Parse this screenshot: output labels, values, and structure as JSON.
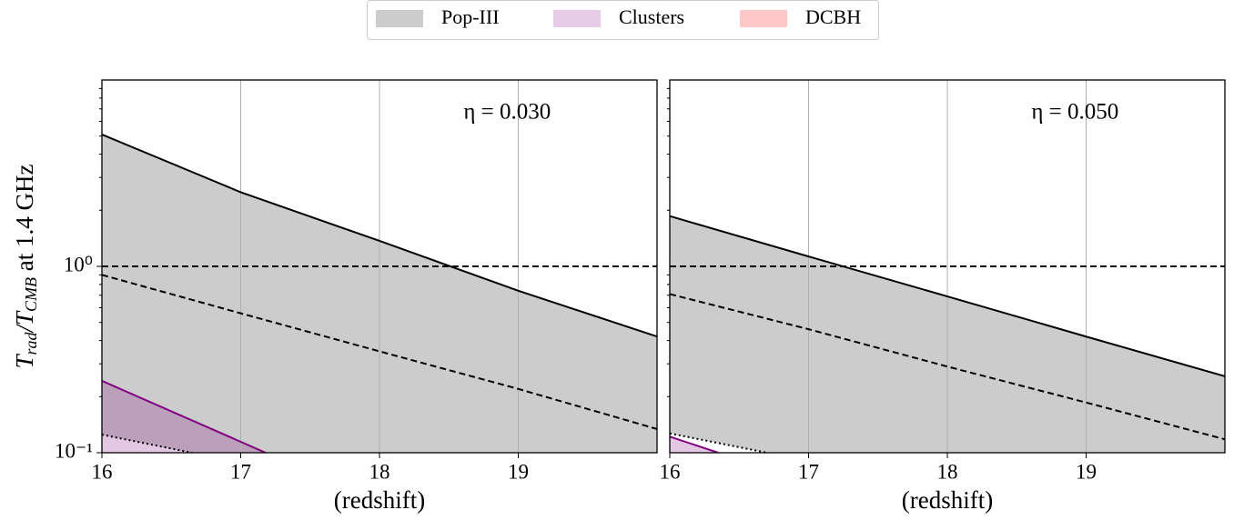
{
  "legend": [
    {
      "name": "Pop-III",
      "color": "#808080"
    },
    {
      "name": "Clusters",
      "color": "#800080"
    },
    {
      "name": "DCBH",
      "color": "#ff0000"
    }
  ],
  "ylabel": [
    "T",
    "rad",
    "/T",
    "CMB",
    " at 1.4 GHz"
  ],
  "chart_data": [
    {
      "type": "line",
      "annotation": "η = 0.030",
      "xlabel": "(redshift)",
      "xlim": [
        16,
        20
      ],
      "xticks": [
        16,
        17,
        18,
        19
      ],
      "ylim": [
        0.1,
        10
      ],
      "log_y": true,
      "yticks": [
        {
          "value": 0.1,
          "label": "10⁻¹"
        },
        {
          "value": 1,
          "label": "10⁰"
        }
      ],
      "grid": true,
      "reference_lines": [
        1
      ],
      "series": [
        {
          "color": "#000000",
          "style": "solid",
          "fill": "#808080",
          "fill_to": 2,
          "x": [
            16,
            17,
            18,
            19,
            20
          ],
          "values": [
            5.1,
            2.5,
            1.37,
            0.74,
            0.42
          ]
        },
        {
          "color": "#000000",
          "style": "dashed",
          "x": [
            16,
            17,
            18,
            19,
            20
          ],
          "values": [
            0.9,
            0.56,
            0.35,
            0.22,
            0.134
          ]
        },
        {
          "color": "#000000",
          "style": "dotted",
          "x": [
            16,
            16.65
          ],
          "values": [
            0.125,
            0.1
          ]
        },
        {
          "color": "#800080",
          "style": "solid",
          "fill": "#800080",
          "x": [
            16,
            17.18
          ],
          "values": [
            0.243,
            0.1
          ]
        }
      ]
    },
    {
      "type": "line",
      "annotation": "η = 0.050",
      "xlabel": "(redshift)",
      "xlim": [
        16,
        20
      ],
      "xticks": [
        16,
        17,
        18,
        19
      ],
      "ylim": [
        0.1,
        10
      ],
      "log_y": true,
      "grid": true,
      "reference_lines": [
        1
      ],
      "series": [
        {
          "color": "#000000",
          "style": "solid",
          "fill": "#808080",
          "fill_to": 2,
          "x": [
            16,
            17,
            18,
            19,
            20
          ],
          "values": [
            1.86,
            1.13,
            0.69,
            0.42,
            0.257
          ]
        },
        {
          "color": "#000000",
          "style": "dashed",
          "x": [
            16,
            17,
            18,
            19,
            20
          ],
          "values": [
            0.71,
            0.46,
            0.29,
            0.186,
            0.118
          ]
        },
        {
          "color": "#000000",
          "style": "dotted",
          "x": [
            16,
            16.7
          ],
          "values": [
            0.127,
            0.1
          ]
        },
        {
          "color": "#800080",
          "style": "solid",
          "fill": "#800080",
          "x": [
            16,
            16.35
          ],
          "values": [
            0.122,
            0.1
          ]
        }
      ]
    }
  ]
}
